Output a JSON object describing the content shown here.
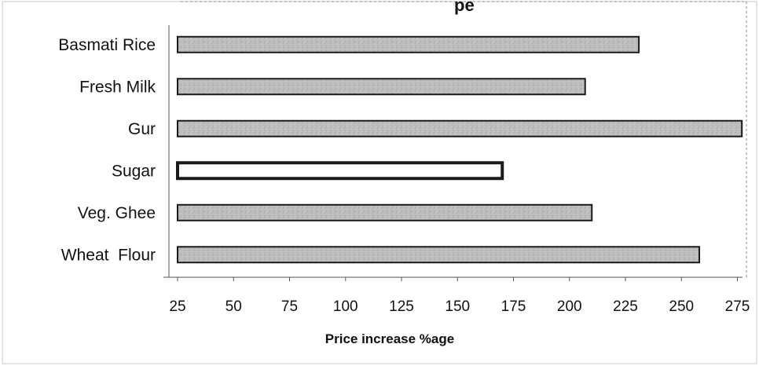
{
  "chart_data": {
    "type": "bar",
    "orientation": "horizontal",
    "title_fragment": "pe",
    "categories": [
      "Basmati Rice",
      "Fresh Milk",
      "Gur",
      "Sugar",
      "Veg. Ghee",
      "Wheat  Flour"
    ],
    "values": [
      231,
      207,
      277,
      170,
      210,
      258
    ],
    "xlabel": "Price increase %age",
    "ylabel": "",
    "xlim": [
      25,
      275
    ],
    "x_ticks": [
      "25",
      "50",
      "75",
      "100",
      "125",
      "150",
      "175",
      "200",
      "225",
      "250",
      "275"
    ],
    "grid": false,
    "legend": "none",
    "colors": {
      "bar_fill": "#b9b9b9",
      "highlight_fill": "#ffffff",
      "bar_stroke": "#1a1a1a"
    },
    "highlight_category": "Sugar"
  }
}
